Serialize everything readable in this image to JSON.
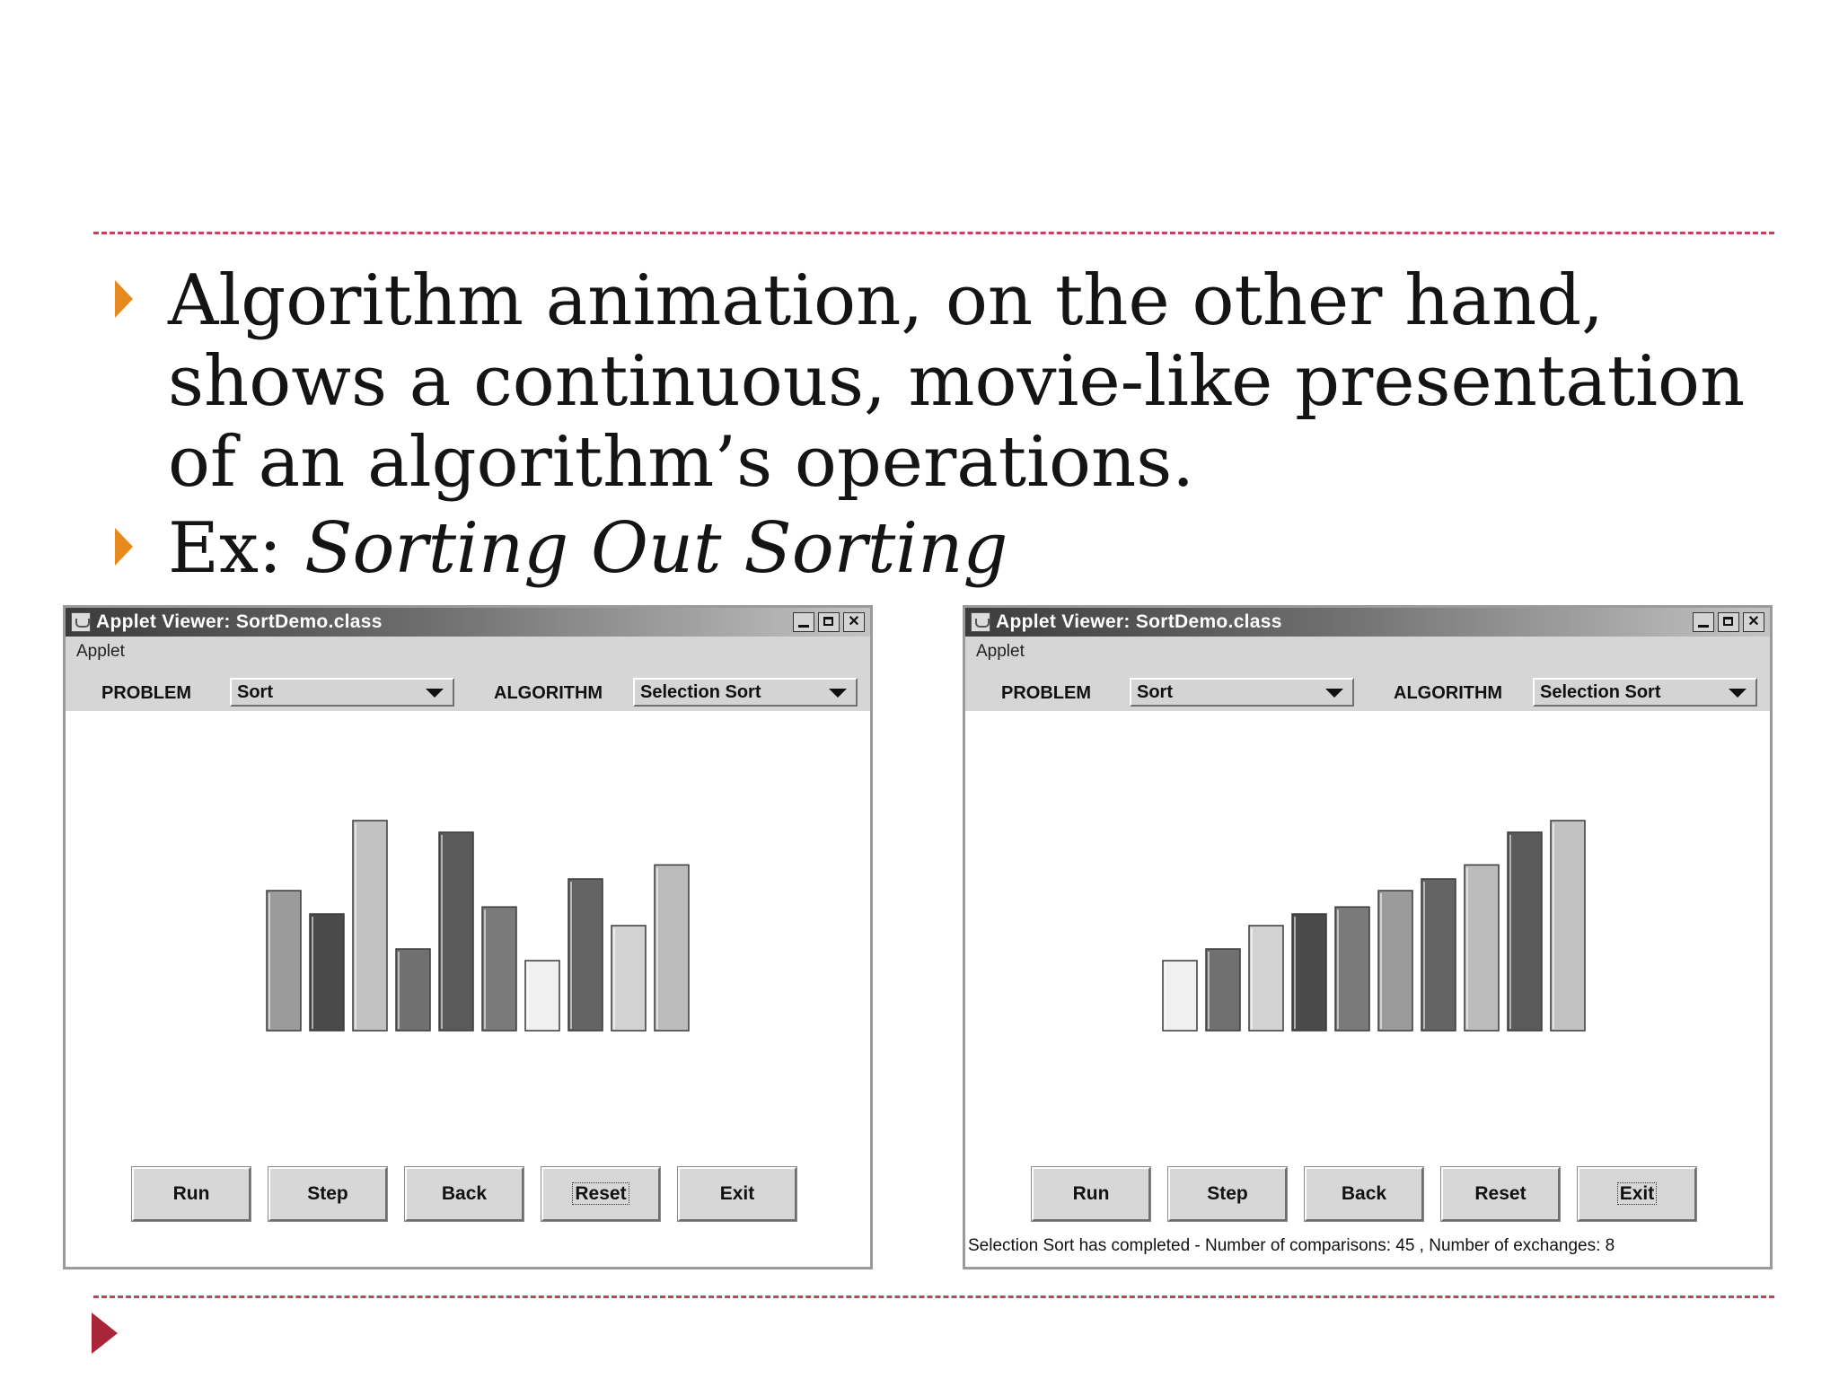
{
  "slide": {
    "bullets": [
      {
        "text": "Algorithm animation, on the other hand, shows a continuous, movie-like presentation of an algorithm’s operations."
      },
      {
        "prefix": "Ex: ",
        "italic": "Sorting Out Sorting"
      }
    ],
    "colors": {
      "dash": "#b8485a",
      "bullet_arrow": "#e68a1f",
      "nav_arrow": "#a8253a"
    }
  },
  "windows": [
    {
      "title": "Applet Viewer: SortDemo.class",
      "menu": "Applet",
      "problem_label": "PROBLEM",
      "problem_value": "Sort",
      "algorithm_label": "ALGORITHM",
      "algorithm_value": "Selection Sort",
      "bars": [
        {
          "value": 6,
          "shade": "#9b9b9b"
        },
        {
          "value": 5,
          "shade": "#4a4a4a"
        },
        {
          "value": 9,
          "shade": "#c2c2c2"
        },
        {
          "value": 3.5,
          "shade": "#707070"
        },
        {
          "value": 8.5,
          "shade": "#5a5a5a"
        },
        {
          "value": 5.3,
          "shade": "#7a7a7a"
        },
        {
          "value": 3,
          "shade": "#f0f0f0"
        },
        {
          "value": 6.5,
          "shade": "#646464"
        },
        {
          "value": 4.5,
          "shade": "#d2d2d2"
        },
        {
          "value": 7.1,
          "shade": "#bcbcbc"
        }
      ],
      "buttons": [
        "Run",
        "Step",
        "Back",
        "Reset",
        "Exit"
      ],
      "focused_button": 3,
      "status": ""
    },
    {
      "title": "Applet Viewer: SortDemo.class",
      "menu": "Applet",
      "problem_label": "PROBLEM",
      "problem_value": "Sort",
      "algorithm_label": "ALGORITHM",
      "algorithm_value": "Selection Sort",
      "bars": [
        {
          "value": 3,
          "shade": "#f0f0f0"
        },
        {
          "value": 3.5,
          "shade": "#707070"
        },
        {
          "value": 4.5,
          "shade": "#d2d2d2"
        },
        {
          "value": 5,
          "shade": "#4a4a4a"
        },
        {
          "value": 5.3,
          "shade": "#7a7a7a"
        },
        {
          "value": 6,
          "shade": "#9b9b9b"
        },
        {
          "value": 6.5,
          "shade": "#646464"
        },
        {
          "value": 7.1,
          "shade": "#bcbcbc"
        },
        {
          "value": 8.5,
          "shade": "#5a5a5a"
        },
        {
          "value": 9,
          "shade": "#c2c2c2"
        }
      ],
      "buttons": [
        "Run",
        "Step",
        "Back",
        "Reset",
        "Exit"
      ],
      "focused_button": 4,
      "status": "Selection Sort has completed - Number of comparisons: 45 , Number of exchanges: 8"
    }
  ]
}
